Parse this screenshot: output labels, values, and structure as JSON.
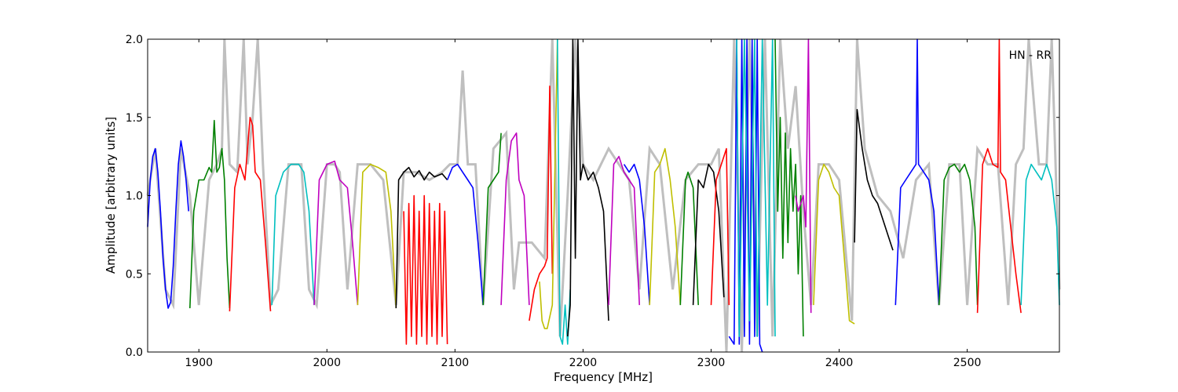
{
  "chart_data": {
    "type": "line",
    "xlabel": "Frequency [MHz]",
    "ylabel": "Amplitude [arbitrary units]",
    "annotation": "HN - RR",
    "xlim": [
      1860,
      2572
    ],
    "ylim": [
      0.0,
      2.0
    ],
    "xticks": [
      1900,
      2000,
      2100,
      2200,
      2300,
      2400,
      2500
    ],
    "xtick_labels": [
      "1900",
      "2000",
      "2100",
      "2200",
      "2300",
      "2400",
      "2500"
    ],
    "yticks": [
      0.0,
      0.5,
      1.0,
      1.5,
      2.0
    ],
    "ytick_labels": [
      "0.0",
      "0.5",
      "1.0",
      "1.5",
      "2.0"
    ],
    "grid": false,
    "colors": {
      "background": "#ffffff",
      "axes": "#000000",
      "raw_trace": "#bfbfbf"
    },
    "raw_trace": {
      "x": [
        1860,
        1866,
        1874,
        1880,
        1886,
        1893,
        1900,
        1908,
        1914,
        1918,
        1920,
        1924,
        1930,
        1935,
        1938,
        1942,
        1946,
        1950,
        1956,
        1962,
        1970,
        1980,
        1986,
        1992,
        2000,
        2006,
        2010,
        2016,
        2024,
        2034,
        2044,
        2054,
        2060,
        2070,
        2080,
        2090,
        2096,
        2102,
        2106,
        2110,
        2116,
        2122,
        2130,
        2140,
        2146,
        2150,
        2160,
        2170,
        2176,
        2182,
        2188,
        2194,
        2200,
        2208,
        2214,
        2220,
        2228,
        2236,
        2244,
        2252,
        2260,
        2270,
        2280,
        2290,
        2300,
        2306,
        2312,
        2318,
        2324,
        2330,
        2336,
        2342,
        2348,
        2354,
        2360,
        2366,
        2372,
        2378,
        2384,
        2392,
        2400,
        2410,
        2414,
        2420,
        2430,
        2440,
        2450,
        2460,
        2470,
        2478,
        2486,
        2494,
        2500,
        2508,
        2516,
        2524,
        2532,
        2538,
        2544,
        2548,
        2556,
        2562,
        2566,
        2572
      ],
      "y": [
        1.0,
        1.3,
        0.4,
        0.3,
        1.3,
        1.0,
        0.3,
        1.1,
        1.2,
        1.3,
        2.0,
        1.2,
        1.15,
        2.0,
        1.2,
        1.5,
        2.0,
        1.2,
        0.3,
        0.4,
        1.2,
        1.2,
        0.4,
        0.3,
        1.2,
        1.2,
        1.15,
        0.4,
        1.2,
        1.2,
        1.1,
        0.3,
        1.15,
        1.15,
        1.1,
        1.15,
        1.2,
        1.2,
        1.8,
        1.2,
        1.2,
        0.3,
        1.3,
        1.4,
        0.4,
        0.7,
        0.7,
        0.6,
        2.0,
        0.1,
        1.0,
        2.0,
        1.2,
        1.1,
        1.2,
        1.3,
        1.2,
        1.1,
        0.4,
        1.3,
        1.2,
        0.4,
        1.1,
        1.2,
        1.2,
        1.3,
        0.0,
        2.0,
        0.0,
        2.0,
        0.1,
        2.0,
        0.1,
        2.0,
        1.3,
        1.7,
        0.9,
        0.3,
        1.2,
        1.2,
        1.1,
        0.2,
        2.0,
        1.3,
        1.0,
        0.9,
        0.6,
        1.1,
        1.2,
        0.3,
        1.2,
        1.2,
        0.3,
        1.3,
        1.2,
        1.2,
        0.3,
        1.2,
        1.3,
        2.0,
        1.2,
        1.2,
        2.0,
        0.4
      ]
    },
    "series": [
      {
        "color": "#0000ff",
        "x": [
          1860,
          1862,
          1864,
          1866,
          1868,
          1870,
          1872,
          1874,
          1876,
          1878,
          1880,
          1882,
          1884,
          1886,
          1888,
          1890,
          1892
        ],
        "y": [
          0.8,
          1.1,
          1.25,
          1.3,
          1.15,
          0.9,
          0.6,
          0.4,
          0.28,
          0.32,
          0.55,
          0.9,
          1.2,
          1.35,
          1.25,
          1.1,
          0.9
        ]
      },
      {
        "color": "#008000",
        "x": [
          1893,
          1896,
          1900,
          1904,
          1908,
          1910,
          1912,
          1914,
          1916,
          1918,
          1920,
          1922,
          1924
        ],
        "y": [
          0.28,
          0.9,
          1.1,
          1.1,
          1.18,
          1.15,
          1.48,
          1.15,
          1.18,
          1.3,
          1.1,
          0.6,
          0.28
        ]
      },
      {
        "color": "#ff0000",
        "x": [
          1924,
          1928,
          1932,
          1936,
          1940,
          1942,
          1944,
          1948,
          1952,
          1956
        ],
        "y": [
          0.26,
          1.05,
          1.2,
          1.1,
          1.5,
          1.45,
          1.15,
          1.1,
          0.7,
          0.26
        ]
      },
      {
        "color": "#00bfbf",
        "x": [
          1957,
          1960,
          1966,
          1972,
          1978,
          1982,
          1986,
          1990
        ],
        "y": [
          0.3,
          1.0,
          1.15,
          1.2,
          1.2,
          1.15,
          0.9,
          0.3
        ]
      },
      {
        "color": "#bf00bf",
        "x": [
          1990,
          1994,
          2000,
          2006,
          2010,
          2016,
          2020,
          2024
        ],
        "y": [
          0.3,
          1.1,
          1.2,
          1.22,
          1.1,
          1.05,
          0.7,
          0.3
        ]
      },
      {
        "color": "#bfbf00",
        "x": [
          2024,
          2028,
          2034,
          2040,
          2046,
          2050,
          2054
        ],
        "y": [
          0.3,
          1.15,
          1.2,
          1.18,
          1.15,
          0.9,
          0.28
        ]
      },
      {
        "color": "#000000",
        "x": [
          2054,
          2056,
          2060,
          2064,
          2068,
          2072,
          2076,
          2080,
          2084,
          2090,
          2094
        ],
        "y": [
          0.28,
          1.1,
          1.15,
          1.18,
          1.12,
          1.16,
          1.1,
          1.15,
          1.12,
          1.14,
          1.1
        ]
      },
      {
        "color": "#ff0000",
        "x": [
          2060,
          2062,
          2064,
          2066,
          2068,
          2070,
          2072,
          2074,
          2076,
          2078,
          2080,
          2082,
          2084,
          2086,
          2088,
          2090,
          2092,
          2094
        ],
        "y": [
          0.9,
          0.05,
          0.95,
          0.1,
          1.0,
          0.05,
          0.9,
          0.1,
          1.0,
          0.05,
          0.95,
          0.1,
          0.9,
          0.05,
          0.95,
          0.1,
          0.9,
          0.05
        ]
      },
      {
        "color": "#0000ff",
        "x": [
          2094,
          2098,
          2102,
          2106,
          2110,
          2114,
          2118,
          2122
        ],
        "y": [
          1.1,
          1.18,
          1.2,
          1.15,
          1.1,
          1.05,
          0.7,
          0.3
        ]
      },
      {
        "color": "#008000",
        "x": [
          2122,
          2126,
          2130,
          2134,
          2136
        ],
        "y": [
          0.3,
          1.05,
          1.1,
          1.15,
          1.4
        ]
      },
      {
        "color": "#bf00bf",
        "x": [
          2136,
          2140,
          2144,
          2148,
          2150,
          2154,
          2158
        ],
        "y": [
          0.3,
          1.1,
          1.35,
          1.4,
          1.1,
          1.0,
          0.3
        ]
      },
      {
        "color": "#ff0000",
        "x": [
          2158,
          2162,
          2166,
          2170,
          2172,
          2174,
          2176
        ],
        "y": [
          0.2,
          0.4,
          0.5,
          0.55,
          0.6,
          1.7,
          0.5
        ]
      },
      {
        "color": "#bfbf00",
        "x": [
          2166,
          2168,
          2170,
          2172,
          2176,
          2180
        ],
        "y": [
          0.45,
          0.2,
          0.15,
          0.15,
          0.3,
          2.0
        ]
      },
      {
        "color": "#00bfbf",
        "x": [
          2180,
          2182,
          2184,
          2186,
          2188,
          2190
        ],
        "y": [
          2.0,
          0.1,
          0.05,
          0.3,
          0.05,
          0.4
        ]
      },
      {
        "color": "#000000",
        "x": [
          2188,
          2190,
          2192,
          2194,
          2196,
          2198,
          2200,
          2204,
          2208,
          2212,
          2216,
          2220
        ],
        "y": [
          0.1,
          0.3,
          2.0,
          0.6,
          2.0,
          1.1,
          1.2,
          1.1,
          1.15,
          1.05,
          0.9,
          0.2
        ]
      },
      {
        "color": "#bf00bf",
        "x": [
          2220,
          2224,
          2228,
          2232,
          2236,
          2240,
          2244
        ],
        "y": [
          0.3,
          1.2,
          1.25,
          1.15,
          1.1,
          1.05,
          0.3
        ]
      },
      {
        "color": "#0000ff",
        "x": [
          2232,
          2236,
          2240,
          2244,
          2248,
          2252
        ],
        "y": [
          1.2,
          1.15,
          1.2,
          1.1,
          0.8,
          0.3
        ]
      },
      {
        "color": "#bfbf00",
        "x": [
          2252,
          2256,
          2260,
          2264,
          2268,
          2272,
          2276
        ],
        "y": [
          0.3,
          1.15,
          1.2,
          1.3,
          1.1,
          0.8,
          0.3
        ]
      },
      {
        "color": "#008000",
        "x": [
          2276,
          2280,
          2282,
          2286,
          2290
        ],
        "y": [
          0.3,
          1.1,
          1.15,
          1.05,
          0.3
        ]
      },
      {
        "color": "#000000",
        "x": [
          2286,
          2290,
          2294,
          2298,
          2302,
          2306,
          2310
        ],
        "y": [
          0.3,
          1.1,
          1.05,
          1.2,
          1.15,
          0.9,
          0.35
        ]
      },
      {
        "color": "#ff0000",
        "x": [
          2300,
          2304,
          2308,
          2312,
          2314
        ],
        "y": [
          0.3,
          1.1,
          1.2,
          1.3,
          0.3
        ]
      },
      {
        "color": "#0000ff",
        "x": [
          2314,
          2318,
          2320,
          2322,
          2324,
          2326,
          2328,
          2330,
          2332,
          2334,
          2336,
          2338,
          2340
        ],
        "y": [
          0.1,
          0.05,
          2.0,
          0.05,
          2.0,
          0.1,
          2.0,
          0.05,
          2.0,
          0.1,
          2.0,
          0.05,
          0.0
        ]
      },
      {
        "color": "#00bfbf",
        "x": [
          2320,
          2322,
          2326,
          2330,
          2334,
          2336,
          2340,
          2344,
          2348,
          2350
        ],
        "y": [
          2.0,
          0.1,
          2.0,
          0.2,
          2.0,
          0.1,
          2.0,
          0.3,
          2.0,
          0.1
        ]
      },
      {
        "color": "#008000",
        "x": [
          2350,
          2352,
          2354,
          2356,
          2358,
          2360,
          2362,
          2364,
          2366,
          2368,
          2370,
          2372
        ],
        "y": [
          2.0,
          0.9,
          1.5,
          0.6,
          1.4,
          0.7,
          1.3,
          0.9,
          1.2,
          0.5,
          1.0,
          0.1
        ]
      },
      {
        "color": "#bf00bf",
        "x": [
          2366,
          2368,
          2370,
          2372,
          2374,
          2376,
          2378
        ],
        "y": [
          1.0,
          0.9,
          0.95,
          1.0,
          0.8,
          2.0,
          0.25
        ]
      },
      {
        "color": "#bfbf00",
        "x": [
          2380,
          2384,
          2388,
          2392,
          2396,
          2400,
          2404,
          2408,
          2412
        ],
        "y": [
          0.3,
          1.1,
          1.2,
          1.15,
          1.05,
          1.0,
          0.6,
          0.2,
          0.18
        ]
      },
      {
        "color": "#000000",
        "x": [
          2412,
          2414,
          2418,
          2422,
          2426,
          2430,
          2434,
          2438,
          2442
        ],
        "y": [
          0.7,
          1.55,
          1.3,
          1.1,
          1.0,
          0.95,
          0.85,
          0.75,
          0.65
        ]
      },
      {
        "color": "#0000ff",
        "x": [
          2444,
          2448,
          2452,
          2456,
          2460,
          2461,
          2462,
          2466,
          2470,
          2474,
          2478
        ],
        "y": [
          0.3,
          1.05,
          1.1,
          1.15,
          1.2,
          2.0,
          1.2,
          1.15,
          1.1,
          0.9,
          0.3
        ]
      },
      {
        "color": "#008000",
        "x": [
          2478,
          2482,
          2486,
          2490,
          2494,
          2498,
          2502,
          2506,
          2508
        ],
        "y": [
          0.3,
          1.1,
          1.18,
          1.2,
          1.15,
          1.2,
          1.1,
          0.8,
          0.3
        ]
      },
      {
        "color": "#ff0000",
        "x": [
          2508,
          2512,
          2516,
          2520,
          2524,
          2525,
          2526,
          2530,
          2534,
          2538,
          2542
        ],
        "y": [
          0.25,
          1.2,
          1.3,
          1.2,
          1.18,
          2.0,
          1.15,
          1.1,
          0.8,
          0.5,
          0.25
        ]
      },
      {
        "color": "#00bfbf",
        "x": [
          2542,
          2546,
          2550,
          2554,
          2558,
          2562,
          2566,
          2570,
          2572
        ],
        "y": [
          0.3,
          1.1,
          1.2,
          1.15,
          1.1,
          1.2,
          1.1,
          0.8,
          0.3
        ]
      }
    ]
  }
}
